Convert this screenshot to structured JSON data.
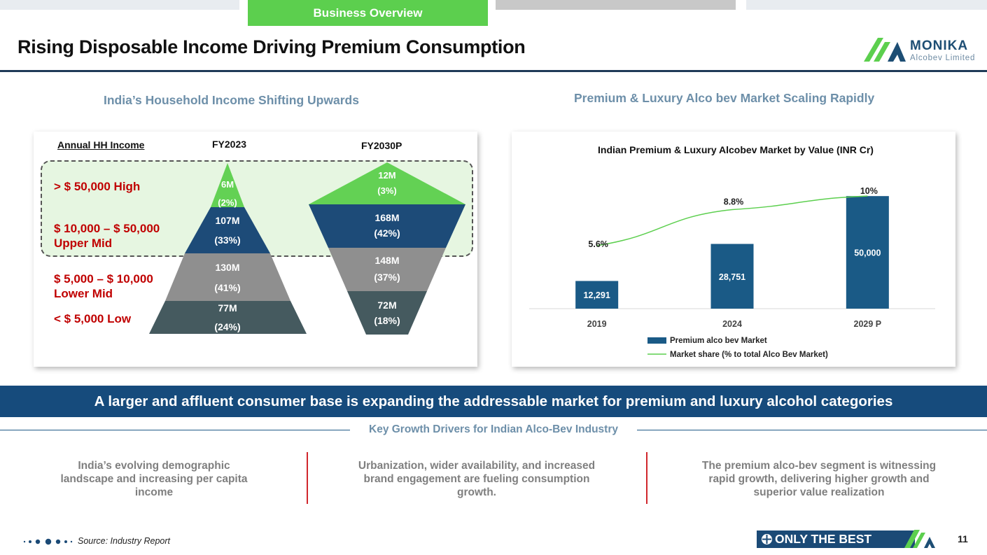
{
  "header": {
    "active_tab": "Business Overview",
    "title": "Rising Disposable Income Driving Premium Consumption",
    "logo_name": "MONIKA",
    "logo_subtitle": "Alcobev Limited"
  },
  "left_panel": {
    "heading": "India’s Household Income Shifting Upwards",
    "col_label": "Annual HH Income",
    "fy2023_label": "FY2023",
    "fy2030_label": "FY2030P",
    "income_bands": [
      {
        "line1": "> $ 50,000 High",
        "line2": ""
      },
      {
        "line1": "$ 10,000 – $ 50,000",
        "line2": "Upper Mid"
      },
      {
        "line1": "$ 5,000 – $ 10,000",
        "line2": "Lower Mid"
      },
      {
        "line1": "< $ 5,000 Low",
        "line2": ""
      }
    ],
    "fy2023_pyramid": [
      {
        "value": "6M",
        "pct": "(2%)"
      },
      {
        "value": "107M",
        "pct": "(33%)"
      },
      {
        "value": "130M",
        "pct": "(41%)"
      },
      {
        "value": "77M",
        "pct": "(24%)"
      }
    ],
    "fy2030_pyramid": [
      {
        "value": "12M",
        "pct": "(3%)"
      },
      {
        "value": "168M",
        "pct": "(42%)"
      },
      {
        "value": "148M",
        "pct": "(37%)"
      },
      {
        "value": "72M",
        "pct": "(18%)"
      }
    ],
    "colors": {
      "high": "#63d154",
      "upper_mid": "#1d4b78",
      "lower_mid": "#8f8f8f",
      "low": "#455a5f"
    }
  },
  "right_panel": {
    "heading": "Premium & Luxury Alco bev Market Scaling Rapidly"
  },
  "chart_data": {
    "type": "bar",
    "title": "Indian Premium & Luxury Alcobev Market by Value (INR Cr)",
    "categories": [
      "2019",
      "2024",
      "2029 P"
    ],
    "series": [
      {
        "name": "Premium alco bev Market",
        "type": "bar",
        "values": [
          12291,
          28751,
          50000
        ],
        "labels": [
          "12,291",
          "28,751",
          "50,000"
        ],
        "color": "#1a5a86"
      },
      {
        "name": "Market share (% to total Alco Bev Market)",
        "type": "line",
        "values": [
          5.6,
          8.8,
          10
        ],
        "labels": [
          "5.6%",
          "8.8%",
          "10%"
        ],
        "color": "#5ccf4e"
      }
    ],
    "ylim": [
      0,
      60000
    ],
    "y2lim": [
      0,
      12
    ],
    "legend": "bottom",
    "xlabel": "",
    "ylabel": ""
  },
  "banner": {
    "text": "A larger and affluent consumer base is expanding the addressable market for premium and luxury alcohol categories"
  },
  "drivers": {
    "heading": "Key Growth Drivers for Indian Alco-Bev Industry",
    "items": [
      "India’s evolving demographic landscape and increasing per capita income",
      "Urbanization, wider availability, and increased brand engagement are fueling consumption growth.",
      "The premium alco-bev segment is witnessing rapid growth, delivering higher growth and superior value realization"
    ]
  },
  "footer": {
    "source": "Source: Industry Report",
    "tagline": "ONLY THE BEST",
    "page_number": "11"
  }
}
